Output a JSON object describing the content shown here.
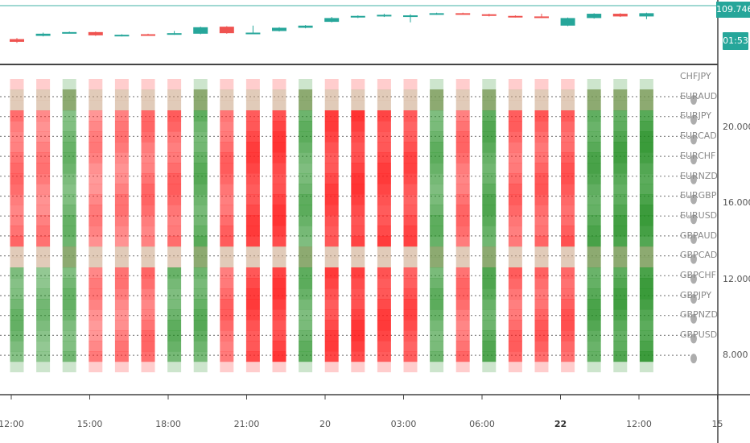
{
  "price_pane": {
    "current_price": "109.746",
    "countdown": "01:53",
    "colors": {
      "up": "#26a69a",
      "down": "#ef5350",
      "price_line": "#80cbc4"
    }
  },
  "indicator_pane": {
    "pair_labels": [
      "CHFJPY",
      "EURAUD",
      "EURJPY",
      "EURCAD",
      "EURCHF",
      "EURNZD",
      "EURGBP",
      "EURUSD",
      "GBPAUD",
      "GBPCAD",
      "GBPCHF",
      "GBPJPY",
      "GBPNZD",
      "GBPUSD"
    ],
    "y_axis_labels": [
      {
        "value": 20.0,
        "text": "20.000"
      },
      {
        "value": 16.0,
        "text": "16.000"
      },
      {
        "value": 12.0,
        "text": "12.000"
      },
      {
        "value": 8.0,
        "text": "8.000"
      }
    ],
    "colors": {
      "bull": "#1a8a1a",
      "bear": "#ff1a1a",
      "neutral": "#c8a080"
    },
    "columns": [
      {
        "bias": "red",
        "strength": 0.55
      },
      {
        "bias": "red",
        "strength": 0.45
      },
      {
        "bias": "green",
        "strength": 0.55
      },
      {
        "bias": "red",
        "strength": 0.4
      },
      {
        "bias": "red",
        "strength": 0.45
      },
      {
        "bias": "red",
        "strength": 0.55
      },
      {
        "bias": "red",
        "strength": 0.6
      },
      {
        "bias": "green",
        "strength": 0.65
      },
      {
        "bias": "red",
        "strength": 0.6
      },
      {
        "bias": "red",
        "strength": 0.85
      },
      {
        "bias": "red",
        "strength": 0.9
      },
      {
        "bias": "green",
        "strength": 0.6
      },
      {
        "bias": "red",
        "strength": 0.85
      },
      {
        "bias": "red",
        "strength": 0.9
      },
      {
        "bias": "red",
        "strength": 0.85
      },
      {
        "bias": "red",
        "strength": 0.8
      },
      {
        "bias": "green",
        "strength": 0.6
      },
      {
        "bias": "red",
        "strength": 0.55
      },
      {
        "bias": "green",
        "strength": 0.7
      },
      {
        "bias": "red",
        "strength": 0.6
      },
      {
        "bias": "red",
        "strength": 0.65
      },
      {
        "bias": "red",
        "strength": 0.7
      },
      {
        "bias": "green",
        "strength": 0.75
      },
      {
        "bias": "green",
        "strength": 0.8
      },
      {
        "bias": "green",
        "strength": 0.85
      }
    ]
  },
  "x_axis": {
    "labels": [
      {
        "text": "12:00",
        "bold": false
      },
      {
        "text": "15:00",
        "bold": false
      },
      {
        "text": "18:00",
        "bold": false
      },
      {
        "text": "21:00",
        "bold": false
      },
      {
        "text": "20",
        "bold": false
      },
      {
        "text": "03:00",
        "bold": false
      },
      {
        "text": "06:00",
        "bold": false
      },
      {
        "text": "22",
        "bold": true
      },
      {
        "text": "12:00",
        "bold": false
      },
      {
        "text": "15",
        "bold": false
      }
    ]
  },
  "candles": [
    {
      "o": 0.35,
      "c": 0.3,
      "h": 0.37,
      "l": 0.28
    },
    {
      "o": 0.41,
      "c": 0.45,
      "h": 0.47,
      "l": 0.4
    },
    {
      "o": 0.47,
      "c": 0.48,
      "h": 0.49,
      "l": 0.46
    },
    {
      "o": 0.48,
      "c": 0.42,
      "h": 0.49,
      "l": 0.41
    },
    {
      "o": 0.41,
      "c": 0.43,
      "h": 0.44,
      "l": 0.4
    },
    {
      "o": 0.44,
      "c": 0.43,
      "h": 0.45,
      "l": 0.42
    },
    {
      "o": 0.44,
      "c": 0.46,
      "h": 0.5,
      "l": 0.43
    },
    {
      "o": 0.45,
      "c": 0.57,
      "h": 0.58,
      "l": 0.44
    },
    {
      "o": 0.58,
      "c": 0.46,
      "h": 0.59,
      "l": 0.45
    },
    {
      "o": 0.46,
      "c": 0.47,
      "h": 0.6,
      "l": 0.45
    },
    {
      "o": 0.5,
      "c": 0.56,
      "h": 0.57,
      "l": 0.49
    },
    {
      "o": 0.56,
      "c": 0.6,
      "h": 0.61,
      "l": 0.55
    },
    {
      "o": 0.67,
      "c": 0.74,
      "h": 0.76,
      "l": 0.66
    },
    {
      "o": 0.75,
      "c": 0.78,
      "h": 0.79,
      "l": 0.74
    },
    {
      "o": 0.77,
      "c": 0.8,
      "h": 0.82,
      "l": 0.76
    },
    {
      "o": 0.76,
      "c": 0.79,
      "h": 0.81,
      "l": 0.66
    },
    {
      "o": 0.81,
      "c": 0.83,
      "h": 0.84,
      "l": 0.8
    },
    {
      "o": 0.83,
      "c": 0.82,
      "h": 0.84,
      "l": 0.81
    },
    {
      "o": 0.81,
      "c": 0.78,
      "h": 0.82,
      "l": 0.77
    },
    {
      "o": 0.78,
      "c": 0.76,
      "h": 0.79,
      "l": 0.75
    },
    {
      "o": 0.77,
      "c": 0.75,
      "h": 0.82,
      "l": 0.74
    },
    {
      "o": 0.6,
      "c": 0.74,
      "h": 0.75,
      "l": 0.59
    },
    {
      "o": 0.74,
      "c": 0.82,
      "h": 0.83,
      "l": 0.73
    },
    {
      "o": 0.82,
      "c": 0.77,
      "h": 0.83,
      "l": 0.76
    },
    {
      "o": 0.77,
      "c": 0.83,
      "h": 0.84,
      "l": 0.72
    }
  ]
}
